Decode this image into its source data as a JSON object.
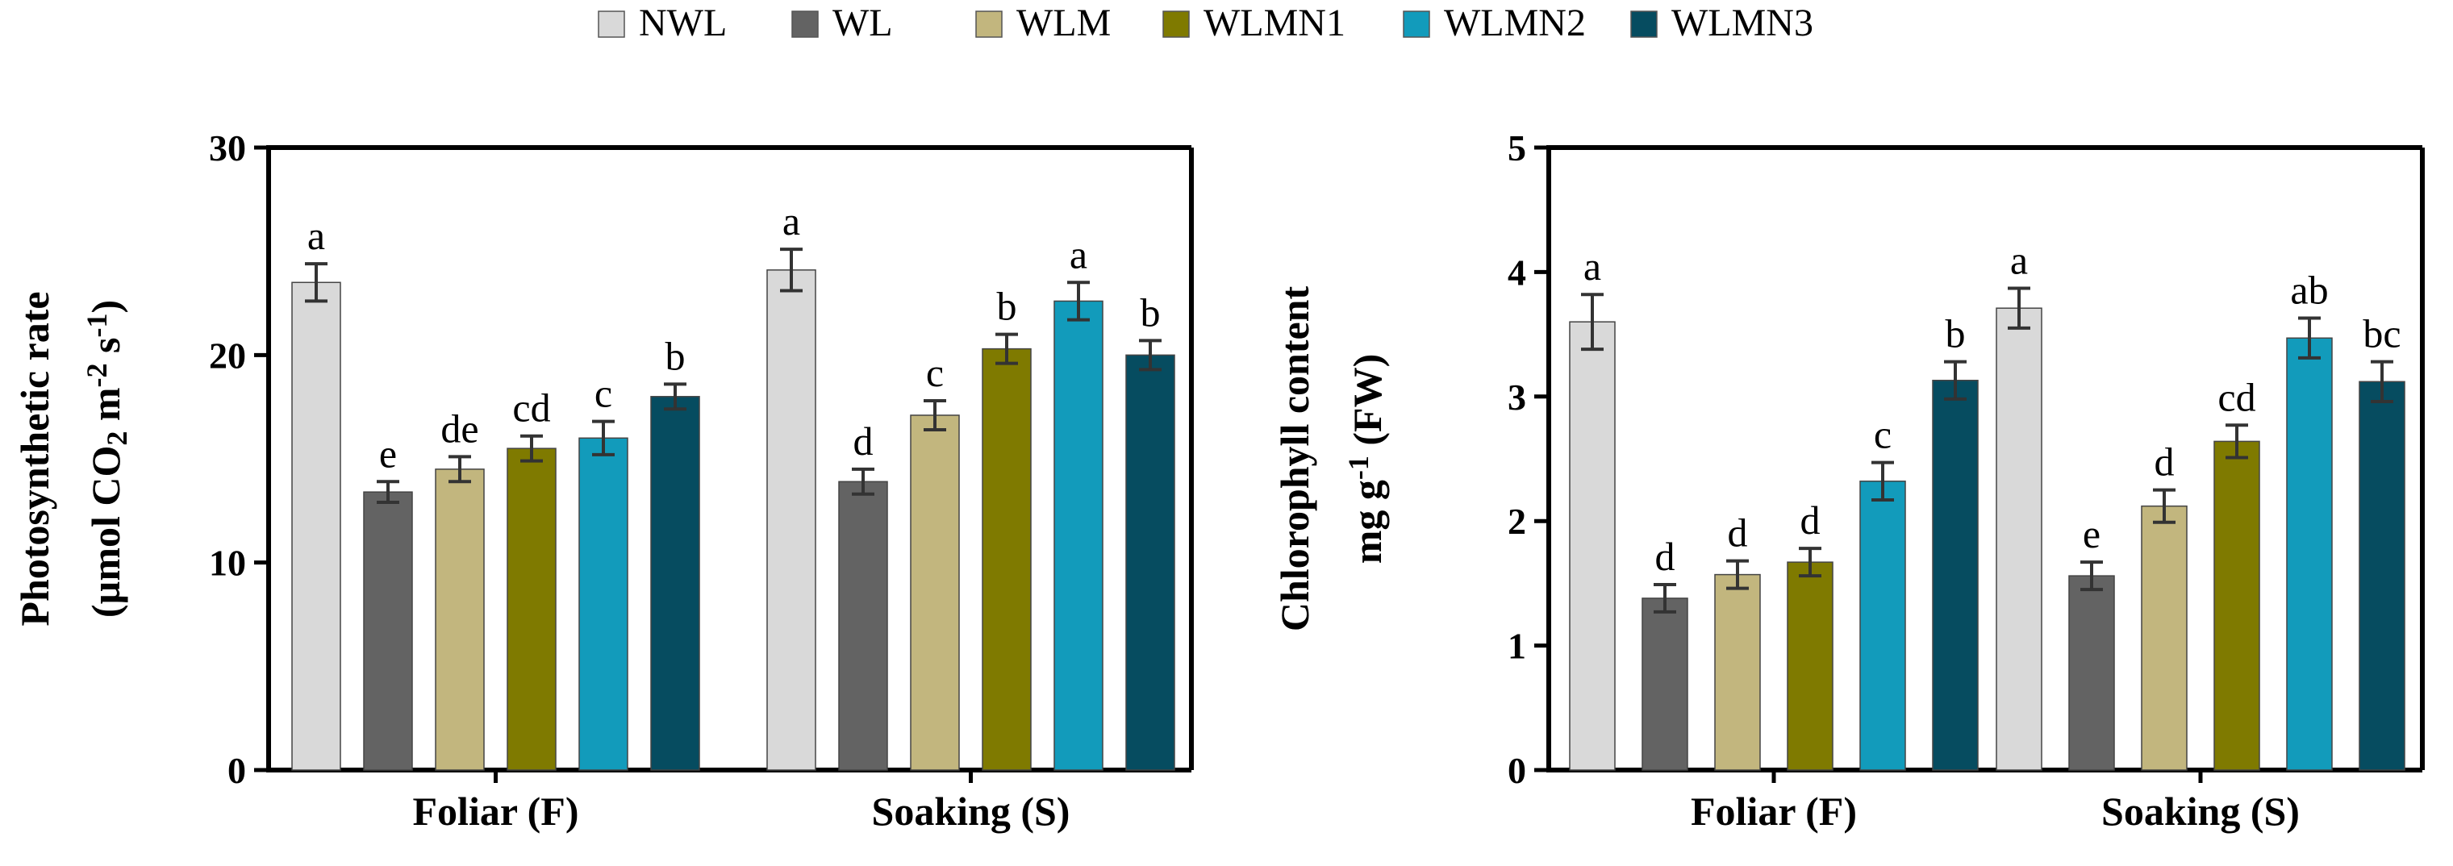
{
  "legend": [
    {
      "name": "NWL",
      "color": "#d9d9d9"
    },
    {
      "name": "WL",
      "color": "#636363"
    },
    {
      "name": "WLM",
      "color": "#c2b67e"
    },
    {
      "name": "WLMN1",
      "color": "#7f7a00"
    },
    {
      "name": "WLMN2",
      "color": "#129bbb"
    },
    {
      "name": "WLMN3",
      "color": "#064c60"
    }
  ],
  "chart_data": [
    {
      "type": "bar",
      "title": "",
      "ylabel_line1": "Photosynthetic rate",
      "ylabel_line2_parts": [
        "(µmol CO",
        "2",
        " m",
        "-2",
        " s",
        "-1",
        ")"
      ],
      "categories": [
        "Foliar (F)",
        "Soaking (S)"
      ],
      "ylim": [
        0,
        30
      ],
      "yticks": [
        0,
        10,
        20,
        30
      ],
      "series": [
        {
          "name": "NWL",
          "values": [
            23.5,
            24.1
          ],
          "errors": [
            0.9,
            1.0
          ],
          "labels": [
            "a",
            "a"
          ]
        },
        {
          "name": "WL",
          "values": [
            13.4,
            13.9
          ],
          "errors": [
            0.5,
            0.6
          ],
          "labels": [
            "e",
            "d"
          ]
        },
        {
          "name": "WLM",
          "values": [
            14.5,
            17.1
          ],
          "errors": [
            0.6,
            0.7
          ],
          "labels": [
            "de",
            "c"
          ]
        },
        {
          "name": "WLMN1",
          "values": [
            15.5,
            20.3
          ],
          "errors": [
            0.6,
            0.7
          ],
          "labels": [
            "cd",
            "b"
          ]
        },
        {
          "name": "WLMN2",
          "values": [
            16.0,
            22.6
          ],
          "errors": [
            0.8,
            0.9
          ],
          "labels": [
            "c",
            "a"
          ]
        },
        {
          "name": "WLMN3",
          "values": [
            18.0,
            20.0
          ],
          "errors": [
            0.6,
            0.7
          ],
          "labels": [
            "b",
            "b"
          ]
        }
      ]
    },
    {
      "type": "bar",
      "title": "",
      "ylabel_line1": "Chlorophyll content",
      "ylabel_line2_parts": [
        "mg g",
        "-1",
        " (FW)"
      ],
      "categories": [
        "Foliar (F)",
        "Soaking (S)"
      ],
      "ylim": [
        0,
        5
      ],
      "yticks": [
        0,
        1,
        2,
        3,
        4,
        5
      ],
      "series": [
        {
          "name": "NWL",
          "values": [
            3.6,
            3.71
          ],
          "errors": [
            0.22,
            0.16
          ],
          "labels": [
            "a",
            "a"
          ]
        },
        {
          "name": "WL",
          "values": [
            1.38,
            1.56
          ],
          "errors": [
            0.11,
            0.11
          ],
          "labels": [
            "d",
            "e"
          ]
        },
        {
          "name": "WLM",
          "values": [
            1.57,
            2.12
          ],
          "errors": [
            0.11,
            0.13
          ],
          "labels": [
            "d",
            "d"
          ]
        },
        {
          "name": "WLMN1",
          "values": [
            1.67,
            2.64
          ],
          "errors": [
            0.11,
            0.13
          ],
          "labels": [
            "d",
            "cd"
          ]
        },
        {
          "name": "WLMN2",
          "values": [
            2.32,
            3.47
          ],
          "errors": [
            0.15,
            0.16
          ],
          "labels": [
            "c",
            "ab"
          ]
        },
        {
          "name": "WLMN3",
          "values": [
            3.13,
            3.12
          ],
          "errors": [
            0.15,
            0.16
          ],
          "labels": [
            "b",
            "bc"
          ]
        }
      ]
    }
  ]
}
